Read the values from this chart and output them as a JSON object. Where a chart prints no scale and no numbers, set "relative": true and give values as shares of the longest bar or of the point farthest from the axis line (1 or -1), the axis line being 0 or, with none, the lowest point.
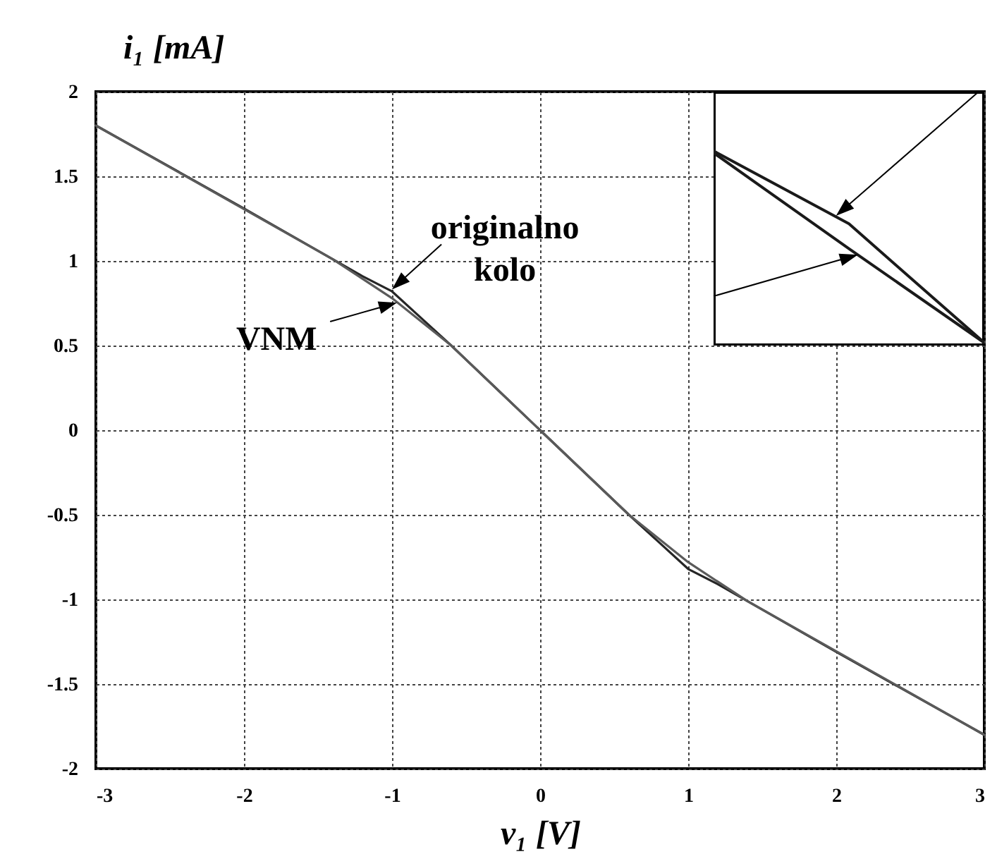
{
  "chart_data": [
    {
      "type": "line",
      "xlabel": "v₁ [V]",
      "ylabel": "i₁ [mA]",
      "xlim": [
        -3,
        3
      ],
      "ylim": [
        -2,
        2
      ],
      "xticks": [
        -3,
        -2,
        -1,
        0,
        1,
        2,
        3
      ],
      "yticks": [
        -2,
        -1.5,
        -1,
        -0.5,
        0,
        0.5,
        1,
        1.5,
        2
      ],
      "grid": true,
      "series": [
        {
          "color": "#262626",
          "x": [
            -3,
            -2,
            -1.5,
            -1.2,
            -1,
            -0.8,
            -0.6,
            -0.3,
            0,
            0.3,
            0.6,
            0.8,
            1,
            1.2,
            1.5,
            2,
            3
          ],
          "values": [
            1.8,
            1.31,
            1.06,
            0.91,
            0.82,
            0.66,
            0.5,
            0.25,
            0,
            -0.25,
            -0.5,
            -0.66,
            -0.82,
            -0.91,
            -1.06,
            -1.31,
            -1.8
          ]
        },
        {
          "color": "#5a5a5a",
          "x": [
            -3,
            -1.4,
            -1,
            -0.6,
            0,
            0.6,
            1,
            1.4,
            3
          ],
          "values": [
            1.8,
            1.01,
            0.78,
            0.5,
            0,
            -0.5,
            -0.78,
            -1.01,
            -1.8
          ]
        }
      ],
      "annotations": [
        {
          "text": "originalno kolo",
          "x": -0.99,
          "y": 0.84
        },
        {
          "text": "VNM",
          "x": -0.98,
          "y": 0.75
        }
      ]
    },
    {
      "type": "line",
      "relative": true,
      "categories": [
        null,
        null,
        null
      ],
      "series": [
        {
          "color": "#1a1a1a",
          "values": [
            1,
            0.62,
            0
          ]
        },
        {
          "color": "#1a1a1a",
          "values": [
            0.99,
            0.49,
            0
          ]
        }
      ]
    }
  ]
}
